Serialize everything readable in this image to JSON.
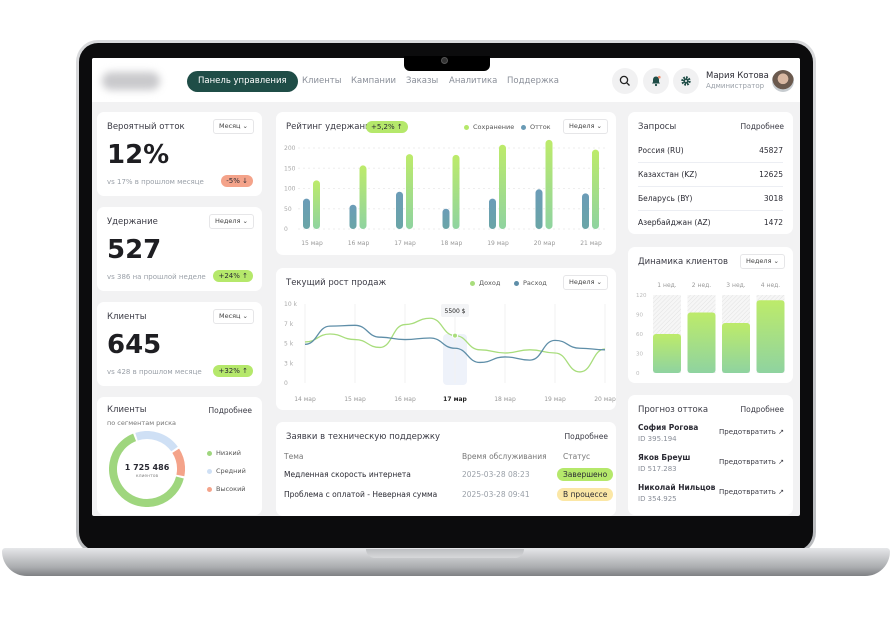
{
  "colors": {
    "accent": "#1f4d47",
    "green": "#b5e86b",
    "blue": "#6a9bb5",
    "salmon": "#f4a38a",
    "light_blue": "#cfe0f5"
  },
  "header": {
    "nav_active": "Панель управления",
    "nav": [
      "Клиенты",
      "Кампании",
      "Заказы",
      "Аналитика",
      "Поддержка"
    ],
    "icons": [
      "search-icon",
      "bell-icon",
      "gear-icon"
    ],
    "user": {
      "name": "Мария Котова",
      "role": "Администратор"
    }
  },
  "kpis": [
    {
      "title": "Вероятный отток",
      "period": "Месяц",
      "value": "12%",
      "compare": "vs 17% в прошлом месяце",
      "delta": "-5% ↓",
      "trend": "down"
    },
    {
      "title": "Удержание",
      "period": "Неделя",
      "value": "527",
      "compare": "vs 386 на прошлой неделе",
      "delta": "+24% ↑",
      "trend": "up"
    },
    {
      "title": "Клиенты",
      "period": "Месяц",
      "value": "645",
      "compare": "vs 428 в прошлом месяце",
      "delta": "+32% ↑",
      "trend": "up"
    }
  ],
  "segments": {
    "title": "Клиенты",
    "subtitle": "по сегментам риска",
    "more": "Подробнее",
    "total": "1 725 486",
    "total_label": "клиентов",
    "chart_data": {
      "type": "pie",
      "series": [
        {
          "name": "Низкий",
          "share": 0.66,
          "color": "#9fd67e"
        },
        {
          "name": "Средний",
          "share": 0.21,
          "color": "#cfe0f5"
        },
        {
          "name": "Высокий",
          "share": 0.13,
          "color": "#f4a38a"
        }
      ]
    }
  },
  "retention": {
    "title": "Рейтинг удержания",
    "badge": "+5,2% ↑",
    "period": "Неделя",
    "chart_data": {
      "type": "bar",
      "categories": [
        "15 мар",
        "16 мар",
        "17 мар",
        "18 мар",
        "19 мар",
        "20 мар",
        "21 мар"
      ],
      "yticks": [
        0,
        50,
        100,
        150,
        200
      ],
      "ylim": [
        0,
        220
      ],
      "series": [
        {
          "name": "Сохранение",
          "color": "#b5e86b",
          "values": [
            120,
            157,
            185,
            183,
            208,
            220,
            196
          ]
        },
        {
          "name": "Отток",
          "color": "#6a9bb5",
          "values": [
            75,
            60,
            92,
            50,
            75,
            98,
            88
          ]
        }
      ]
    }
  },
  "sales": {
    "title": "Текущий рост продаж",
    "period": "Неделя",
    "tooltip": "5500 $",
    "highlight": "17 мар",
    "chart_data": {
      "type": "line",
      "x_labels": [
        "14 мар",
        "15 мар",
        "16 мар",
        "17 мар",
        "18 мар",
        "19 мар",
        "20 мар"
      ],
      "ytick_labels": [
        "0",
        "3 k",
        "5 k",
        "7 k",
        "10 k"
      ],
      "ylim": [
        0,
        10
      ],
      "x": [
        "14 мар 00:00",
        "14 мар 12:00",
        "15 мар 00:00",
        "15 мар 12:00",
        "16 мар 00:00",
        "16 мар 12:00",
        "17 мар 00:00",
        "17 мар 12:00",
        "18 мар 00:00",
        "18 мар 12:00",
        "19 мар 00:00",
        "19 мар 12:00",
        "20 мар 00:00"
      ],
      "series": [
        {
          "name": "Доход",
          "color": "#a8dd7c",
          "values": [
            5.2,
            6.2,
            5.5,
            4.5,
            7.4,
            8.2,
            6.0,
            4.2,
            3.8,
            4.2,
            3.8,
            1.4,
            4.3
          ]
        },
        {
          "name": "Расход",
          "color": "#5e8ea8",
          "values": [
            4.9,
            7.2,
            7.3,
            5.8,
            5.5,
            5.7,
            4.4,
            2.6,
            3.3,
            2.9,
            5.4,
            4.4,
            4.2
          ]
        }
      ]
    }
  },
  "tickets": {
    "title": "Заявки в техническую поддержку",
    "more": "Подробнее",
    "columns": [
      "Тема",
      "Время обслуживания",
      "Статус"
    ],
    "rows": [
      {
        "topic": "Медленная скорость интернета",
        "time": "2025-03-28 08:23",
        "status": "Завершено",
        "status_color": "#b5e86b"
      },
      {
        "topic": "Проблема с оплатой - Неверная сумма",
        "time": "2025-03-28 09:41",
        "status": "В процессе",
        "status_color": "#fbe7a6"
      }
    ]
  },
  "requests": {
    "title": "Запросы",
    "more": "Подробнее",
    "rows": [
      {
        "country": "Россия (RU)",
        "value": "45827"
      },
      {
        "country": "Казахстан (KZ)",
        "value": "12625"
      },
      {
        "country": "Беларусь (BY)",
        "value": "3018"
      },
      {
        "country": "Азербайджан (AZ)",
        "value": "1472"
      }
    ]
  },
  "dynamics": {
    "title": "Динамика клиентов",
    "period": "Неделя",
    "chart_data": {
      "type": "bar",
      "categories": [
        "1 нед.",
        "2 нед.",
        "3 нед.",
        "4 нед."
      ],
      "values": [
        60,
        93,
        77,
        112
      ],
      "ylim": [
        0,
        120
      ],
      "yticks": [
        0,
        30,
        60,
        90,
        120
      ]
    }
  },
  "churn": {
    "title": "Прогноз оттока",
    "more": "Подробнее",
    "action": "Предотвратить ↗",
    "people": [
      {
        "name": "София Рогова",
        "id": "ID 395.194"
      },
      {
        "name": "Яков Бреуш",
        "id": "ID 517.283"
      },
      {
        "name": "Николай Нильцов",
        "id": "ID 354.925"
      }
    ]
  }
}
